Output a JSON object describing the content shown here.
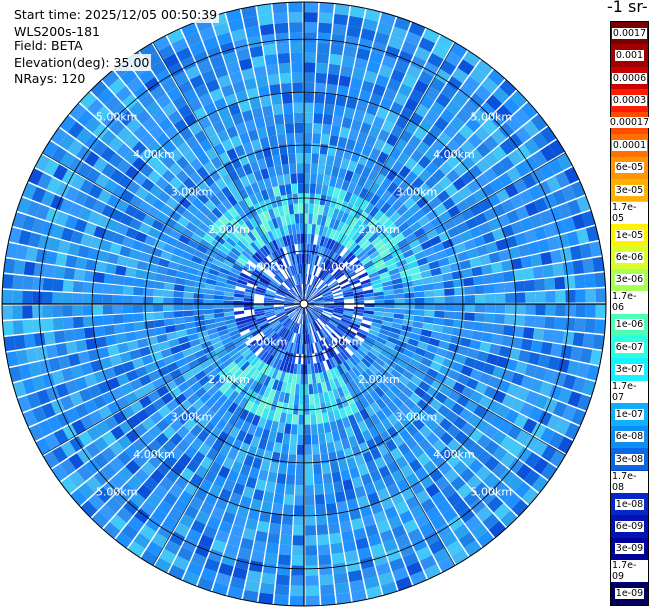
{
  "info": {
    "start_time": "Start time: 2025/12/05 00:50:39",
    "instrument": "WLS200s-181",
    "field": "Field: BETA",
    "elevation": "Elevation(deg): 35.00",
    "nrays": "NRays: 120"
  },
  "colorbar": {
    "unit_label": "-1 sr-",
    "ticks": [
      "0.0017",
      "0.001",
      "0.0006",
      "0.0003",
      "0.00017",
      "0.0001",
      "6e-05",
      "3e-05",
      "1.7e-05",
      "1e-05",
      "6e-06",
      "3e-06",
      "1.7e-06",
      "1e-06",
      "6e-07",
      "3e-07",
      "1.7e-07",
      "1e-07",
      "6e-08",
      "3e-08",
      "1.7e-08",
      "1e-08",
      "6e-09",
      "3e-09",
      "1.7e-09",
      "1e-09"
    ],
    "colors": [
      "#7a0000",
      "#a00000",
      "#c80000",
      "#ff1a00",
      "#ff4a00",
      "#ff7000",
      "#ff9500",
      "#ffb000",
      "#ffd000",
      "#fff200",
      "#d8ff2a",
      "#a8ff58",
      "#78ff88",
      "#4dffb4",
      "#2bffe0",
      "#15f2ff",
      "#12d2ff",
      "#10b0ff",
      "#0d8ef4",
      "#0a68e6",
      "#0846d8",
      "#0528c8",
      "#0212b4",
      "#00009a",
      "#00007a",
      "#00005a"
    ]
  },
  "chart_data": {
    "type": "heatmap",
    "projection": "polar PPI",
    "field": "BETA",
    "elevation_deg": 35.0,
    "n_rays": 120,
    "range_rings_km": [
      1,
      2,
      3,
      4,
      5
    ],
    "range_ring_labels": [
      "1.00km",
      "2.00km",
      "3.00km",
      "4.00km",
      "5.00km"
    ],
    "max_range_km": 5.7,
    "scale": "log",
    "grid": true
  }
}
